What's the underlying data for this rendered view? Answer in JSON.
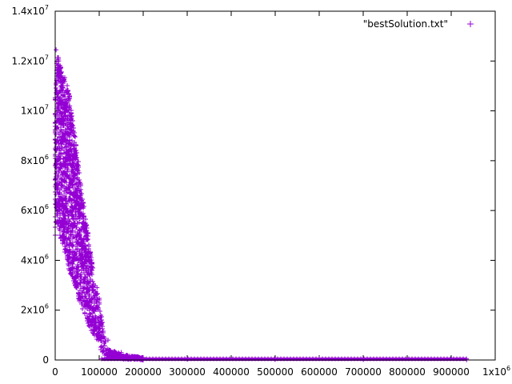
{
  "chart_data": {
    "type": "scatter",
    "title": "",
    "xlabel": "",
    "ylabel": "",
    "xlim": [
      0,
      1000000
    ],
    "ylim": [
      0,
      14000000
    ],
    "grid": false,
    "legend_position": "top-right",
    "marker": "+",
    "x_ticks": [
      {
        "value": 0,
        "label": "0"
      },
      {
        "value": 100000,
        "label": "100000"
      },
      {
        "value": 200000,
        "label": "200000"
      },
      {
        "value": 300000,
        "label": "300000"
      },
      {
        "value": 400000,
        "label": "400000"
      },
      {
        "value": 500000,
        "label": "500000"
      },
      {
        "value": 600000,
        "label": "600000"
      },
      {
        "value": 700000,
        "label": "700000"
      },
      {
        "value": 800000,
        "label": "800000"
      },
      {
        "value": 900000,
        "label": "900000"
      }
    ],
    "x_end_label": {
      "base": "1x10",
      "exp": "6"
    },
    "y_ticks": [
      {
        "value": 0,
        "base": "0",
        "exp": ""
      },
      {
        "value": 2000000,
        "base": "2x10",
        "exp": "6"
      },
      {
        "value": 4000000,
        "base": "4x10",
        "exp": "6"
      },
      {
        "value": 6000000,
        "base": "6x10",
        "exp": "6"
      },
      {
        "value": 8000000,
        "base": "8x10",
        "exp": "6"
      },
      {
        "value": 10000000,
        "base": "1x10",
        "exp": "7"
      },
      {
        "value": 12000000,
        "base": "1.2x10",
        "exp": "7"
      },
      {
        "value": 14000000,
        "base": "1.4x10",
        "exp": "7"
      }
    ],
    "series": [
      {
        "name": "\"bestSolution.txt\"",
        "color": "#9400d3",
        "envelope": {
          "description_x": [
            0,
            5000,
            10000,
            20000,
            30000,
            40000,
            50000,
            60000,
            70000,
            80000,
            90000,
            100000,
            105000,
            110000,
            120000,
            140000,
            160000,
            180000,
            200000,
            935000
          ],
          "upper": [
            11000000,
            12400000,
            11900000,
            11500000,
            10900000,
            9800000,
            8500000,
            6800000,
            5700000,
            4400000,
            3200000,
            2500000,
            2000000,
            1000000,
            500000,
            300000,
            200000,
            150000,
            100000,
            100000
          ],
          "lower": [
            5000000,
            5500000,
            5000000,
            4500000,
            3600000,
            3300000,
            2600000,
            2100000,
            1700000,
            1200000,
            900000,
            600000,
            300000,
            150000,
            50000,
            20000,
            10000,
            5000,
            0,
            0
          ]
        },
        "points": [
          [
            2000,
            12450000
          ],
          [
            3500,
            11900000
          ],
          [
            8000,
            12000000
          ],
          [
            14000,
            11200000
          ],
          [
            25000,
            10800000
          ],
          [
            33000,
            10200000
          ],
          [
            44000,
            8500000
          ],
          [
            52000,
            7600000
          ],
          [
            60000,
            6400000
          ],
          [
            72000,
            5300000
          ],
          [
            85000,
            3700000
          ],
          [
            95000,
            2900000
          ],
          [
            105000,
            1500000
          ],
          [
            120000,
            800000
          ],
          [
            150000,
            300000
          ],
          [
            180000,
            150000
          ],
          [
            300000,
            30000
          ],
          [
            500000,
            20000
          ],
          [
            700000,
            20000
          ],
          [
            935000,
            10000
          ]
        ]
      }
    ]
  }
}
